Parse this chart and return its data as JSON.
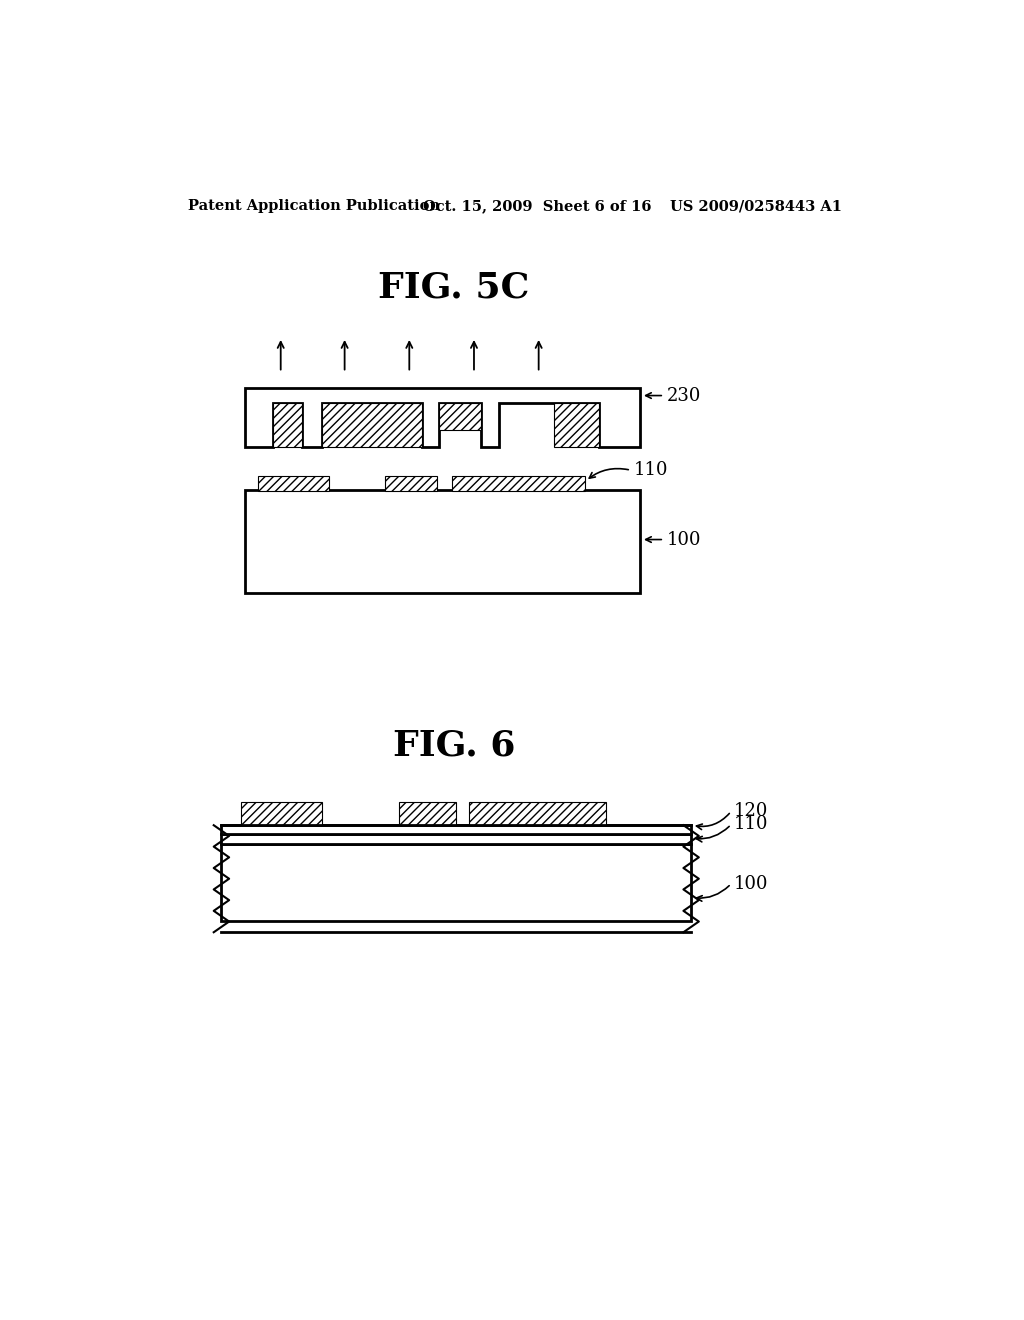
{
  "background_color": "#ffffff",
  "header_left": "Patent Application Publication",
  "header_mid": "Oct. 15, 2009  Sheet 6 of 16",
  "header_right": "US 2009/0258443 A1",
  "fig5c_title": "FIG. 5C",
  "fig6_title": "FIG. 6",
  "label_230": "230",
  "label_110_5c": "110",
  "label_100_5c": "100",
  "label_120": "120",
  "label_110_6": "110",
  "label_100_6": "100"
}
